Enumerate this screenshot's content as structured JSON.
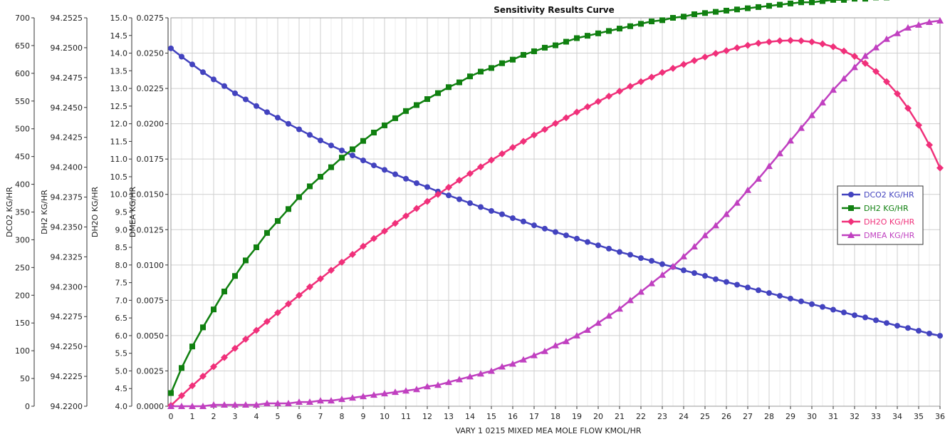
{
  "chart_data": {
    "type": "line",
    "title": "Sensitivity Results Curve",
    "xlabel": "VARY   1 0215 MIXED MEA MOLE FLOW KMOL/HR",
    "xlim": [
      0,
      36
    ],
    "x_ticks": [
      "0",
      "1",
      "2",
      "3",
      "4",
      "5",
      "6",
      "7",
      "8",
      "9",
      "10",
      "11",
      "12",
      "13",
      "14",
      "15",
      "16",
      "17",
      "18",
      "19",
      "20",
      "21",
      "22",
      "23",
      "24",
      "25",
      "26",
      "27",
      "28",
      "29",
      "30",
      "31",
      "32",
      "33",
      "34",
      "35",
      "36"
    ],
    "grid": true,
    "legend_position": "right",
    "x": [
      0,
      0.5,
      1,
      1.5,
      2,
      2.5,
      3,
      3.5,
      4,
      4.5,
      5,
      5.5,
      6,
      6.5,
      7,
      7.5,
      8,
      8.5,
      9,
      9.5,
      10,
      10.5,
      11,
      11.5,
      12,
      12.5,
      13,
      13.5,
      14,
      14.5,
      15,
      15.5,
      16,
      16.5,
      17,
      17.5,
      18,
      18.5,
      19,
      19.5,
      20,
      20.5,
      21,
      21.5,
      22,
      22.5,
      23,
      23.5,
      24,
      24.5,
      25,
      25.5,
      26,
      26.5,
      27,
      27.5,
      28,
      28.5,
      29,
      29.5,
      30,
      30.5,
      31,
      31.5,
      32,
      32.5,
      33,
      33.5,
      34,
      34.5,
      35,
      35.5,
      36
    ],
    "axes": [
      {
        "label": "DCO2 KG/HR",
        "ticks": [
          "0",
          "50",
          "100",
          "150",
          "200",
          "250",
          "300",
          "350",
          "400",
          "450",
          "500",
          "550",
          "600",
          "650",
          "700"
        ],
        "ylim": [
          0,
          700
        ]
      },
      {
        "label": "DH2 KG/HR",
        "ticks": [
          "94.2200",
          "94.2225",
          "94.2250",
          "94.2275",
          "94.2300",
          "94.2325",
          "94.2350",
          "94.2375",
          "94.2400",
          "94.2425",
          "94.2450",
          "94.2475",
          "94.2500",
          "94.2525"
        ],
        "ylim": [
          94.22,
          94.2525
        ]
      },
      {
        "label": "DH2O KG/HR",
        "ticks": [
          "4.0",
          "4.5",
          "5.0",
          "5.5",
          "6.0",
          "6.5",
          "7.0",
          "7.5",
          "8.0",
          "8.5",
          "9.0",
          "9.5",
          "10.0",
          "10.5",
          "11.0",
          "11.5",
          "12.0",
          "12.5",
          "13.0",
          "13.5",
          "14.0",
          "14.5",
          "15.0"
        ],
        "ylim": [
          4.0,
          15.0
        ]
      },
      {
        "label": "DMEA KG/HR",
        "ticks": [
          "0.0000",
          "0.0025",
          "0.0050",
          "0.0075",
          "0.0100",
          "0.0125",
          "0.0150",
          "0.0175",
          "0.0200",
          "0.0225",
          "0.0250",
          "0.0275"
        ],
        "ylim": [
          0,
          0.0275
        ]
      }
    ],
    "series": [
      {
        "name": "DCO2 KG/HR",
        "color": "#4343BF",
        "marker": "circle",
        "axis": 0,
        "values": [
          645,
          630,
          616,
          602,
          589,
          577,
          564,
          553,
          541,
          530,
          520,
          509,
          499,
          489,
          479,
          470,
          461,
          452,
          443,
          434,
          426,
          418,
          410,
          402,
          395,
          387,
          380,
          373,
          366,
          359,
          352,
          346,
          339,
          333,
          326,
          320,
          314,
          308,
          302,
          296,
          290,
          284,
          278,
          273,
          267,
          262,
          256,
          251,
          245,
          240,
          235,
          229,
          224,
          219,
          214,
          209,
          204,
          199,
          194,
          189,
          184,
          179,
          174,
          169,
          164,
          160,
          155,
          150,
          145,
          141,
          136,
          131,
          127
        ]
      },
      {
        "name": "DH2 KG/HR",
        "color": "#108010",
        "marker": "square",
        "axis": 1,
        "values": [
          94.2211,
          94.2232,
          94.225,
          94.2266,
          94.2281,
          94.2296,
          94.2309,
          94.2322,
          94.2333,
          94.2345,
          94.2355,
          94.2365,
          94.2375,
          94.2384,
          94.2392,
          94.24,
          94.2408,
          94.2415,
          94.2422,
          94.2429,
          94.2435,
          94.2441,
          94.2447,
          94.2452,
          94.2457,
          94.2462,
          94.2467,
          94.2471,
          94.2476,
          94.248,
          94.2483,
          94.2487,
          94.249,
          94.2494,
          94.2497,
          94.25,
          94.2502,
          94.2505,
          94.2508,
          94.251,
          94.2512,
          94.2514,
          94.2516,
          94.2518,
          94.252,
          94.2522,
          94.2523,
          94.2525,
          94.2526,
          94.2528,
          94.2529,
          94.253,
          94.2531,
          94.2532,
          94.2533,
          94.2534,
          94.2535,
          94.2536,
          94.2537,
          94.2538,
          94.2538,
          94.2539,
          94.254,
          94.254,
          94.2541,
          94.2541,
          94.2542,
          94.2542,
          94.2543,
          94.2543,
          94.2544,
          94.2544,
          94.2545
        ]
      },
      {
        "name": "DH2O KG/HR",
        "color": "#F0307A",
        "marker": "diamond",
        "axis": 2,
        "values": [
          4.02,
          4.3,
          4.58,
          4.85,
          5.12,
          5.38,
          5.64,
          5.9,
          6.15,
          6.4,
          6.65,
          6.9,
          7.14,
          7.38,
          7.61,
          7.85,
          8.08,
          8.3,
          8.53,
          8.75,
          8.96,
          9.18,
          9.39,
          9.6,
          9.8,
          10.0,
          10.2,
          10.4,
          10.59,
          10.78,
          10.97,
          11.15,
          11.33,
          11.5,
          11.68,
          11.84,
          12.01,
          12.17,
          12.33,
          12.48,
          12.63,
          12.78,
          12.92,
          13.06,
          13.19,
          13.32,
          13.45,
          13.57,
          13.68,
          13.79,
          13.89,
          13.99,
          14.07,
          14.15,
          14.22,
          14.28,
          14.32,
          14.35,
          14.36,
          14.35,
          14.32,
          14.26,
          14.18,
          14.06,
          13.91,
          13.71,
          13.48,
          13.19,
          12.85,
          12.44,
          11.96,
          11.4,
          10.75
        ]
      },
      {
        "name": "DMEA KG/HR",
        "color": "#C040C0",
        "marker": "triangle",
        "axis": 3,
        "values": [
          0.0,
          0.0,
          0.0,
          0.0,
          0.0001,
          0.0001,
          0.0001,
          0.0001,
          0.0001,
          0.0002,
          0.0002,
          0.0002,
          0.0003,
          0.0003,
          0.0004,
          0.0004,
          0.0005,
          0.0006,
          0.0007,
          0.0008,
          0.0009,
          0.001,
          0.0011,
          0.0012,
          0.0014,
          0.0015,
          0.0017,
          0.0019,
          0.0021,
          0.0023,
          0.0025,
          0.0028,
          0.003,
          0.0033,
          0.0036,
          0.0039,
          0.0043,
          0.0046,
          0.005,
          0.0054,
          0.0059,
          0.0064,
          0.0069,
          0.0075,
          0.0081,
          0.0087,
          0.0093,
          0.0099,
          0.0106,
          0.0113,
          0.0121,
          0.0128,
          0.0136,
          0.0144,
          0.0153,
          0.0161,
          0.017,
          0.0179,
          0.0188,
          0.0197,
          0.0206,
          0.0215,
          0.0224,
          0.0232,
          0.024,
          0.0248,
          0.0254,
          0.026,
          0.0264,
          0.0268,
          0.027,
          0.0272,
          0.0273
        ]
      }
    ]
  }
}
